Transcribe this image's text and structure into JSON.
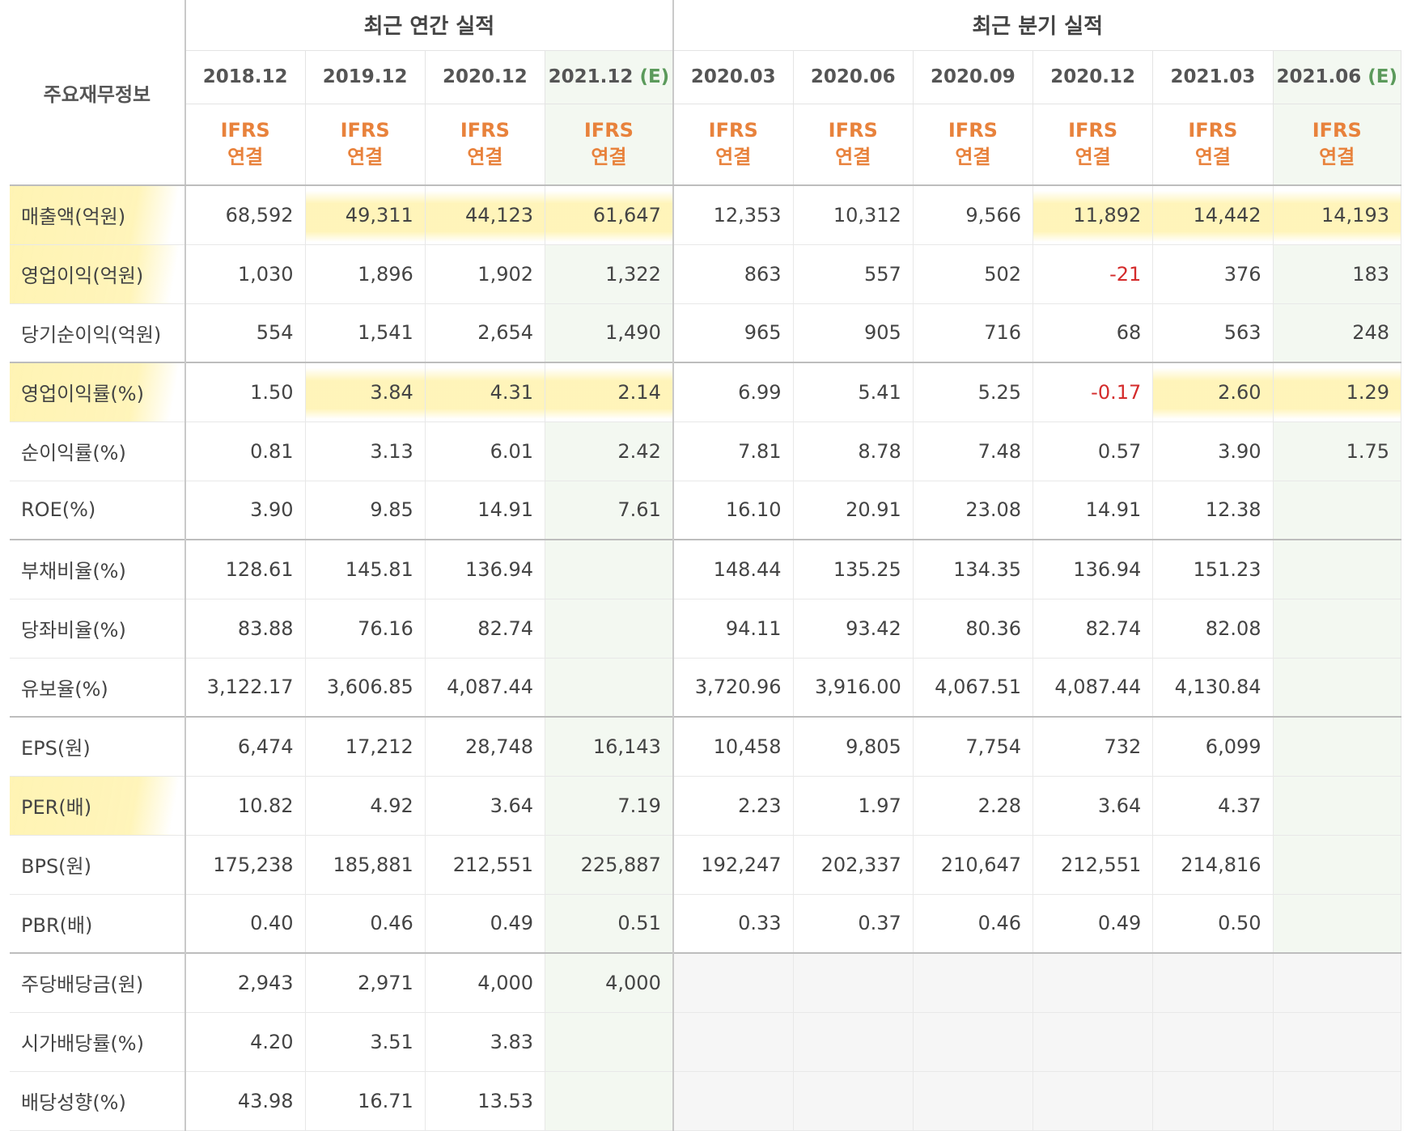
{
  "header": {
    "row_label": "주요재무정보",
    "annual_title": "최근 연간 실적",
    "quarter_title": "최근 분기 실적",
    "periods": [
      {
        "label": "2018.12",
        "est": ""
      },
      {
        "label": "2019.12",
        "est": ""
      },
      {
        "label": "2020.12",
        "est": ""
      },
      {
        "label": "2021.12",
        "est": "(E)"
      },
      {
        "label": "2020.03",
        "est": ""
      },
      {
        "label": "2020.06",
        "est": ""
      },
      {
        "label": "2020.09",
        "est": ""
      },
      {
        "label": "2020.12",
        "est": ""
      },
      {
        "label": "2021.03",
        "est": ""
      },
      {
        "label": "2021.06",
        "est": "(E)"
      }
    ],
    "ifrs_line1": "IFRS",
    "ifrs_line2": "연결"
  },
  "rows": [
    {
      "label": "매출액(억원)",
      "values": [
        "68,592",
        "49,311",
        "44,123",
        "61,647",
        "12,353",
        "10,312",
        "9,566",
        "11,892",
        "14,442",
        "14,193"
      ]
    },
    {
      "label": "영업이익(억원)",
      "values": [
        "1,030",
        "1,896",
        "1,902",
        "1,322",
        "863",
        "557",
        "502",
        "-21",
        "376",
        "183"
      ]
    },
    {
      "label": "당기순이익(억원)",
      "values": [
        "554",
        "1,541",
        "2,654",
        "1,490",
        "965",
        "905",
        "716",
        "68",
        "563",
        "248"
      ]
    },
    {
      "label": "영업이익률(%)",
      "values": [
        "1.50",
        "3.84",
        "4.31",
        "2.14",
        "6.99",
        "5.41",
        "5.25",
        "-0.17",
        "2.60",
        "1.29"
      ]
    },
    {
      "label": "순이익률(%)",
      "values": [
        "0.81",
        "3.13",
        "6.01",
        "2.42",
        "7.81",
        "8.78",
        "7.48",
        "0.57",
        "3.90",
        "1.75"
      ]
    },
    {
      "label": "ROE(%)",
      "values": [
        "3.90",
        "9.85",
        "14.91",
        "7.61",
        "16.10",
        "20.91",
        "23.08",
        "14.91",
        "12.38",
        ""
      ]
    },
    {
      "label": "부채비율(%)",
      "values": [
        "128.61",
        "145.81",
        "136.94",
        "",
        "148.44",
        "135.25",
        "134.35",
        "136.94",
        "151.23",
        ""
      ]
    },
    {
      "label": "당좌비율(%)",
      "values": [
        "83.88",
        "76.16",
        "82.74",
        "",
        "94.11",
        "93.42",
        "80.36",
        "82.74",
        "82.08",
        ""
      ]
    },
    {
      "label": "유보율(%)",
      "values": [
        "3,122.17",
        "3,606.85",
        "4,087.44",
        "",
        "3,720.96",
        "3,916.00",
        "4,067.51",
        "4,087.44",
        "4,130.84",
        ""
      ]
    },
    {
      "label": "EPS(원)",
      "values": [
        "6,474",
        "17,212",
        "28,748",
        "16,143",
        "10,458",
        "9,805",
        "7,754",
        "732",
        "6,099",
        ""
      ]
    },
    {
      "label": "PER(배)",
      "values": [
        "10.82",
        "4.92",
        "3.64",
        "7.19",
        "2.23",
        "1.97",
        "2.28",
        "3.64",
        "4.37",
        ""
      ]
    },
    {
      "label": "BPS(원)",
      "values": [
        "175,238",
        "185,881",
        "212,551",
        "225,887",
        "192,247",
        "202,337",
        "210,647",
        "212,551",
        "214,816",
        ""
      ]
    },
    {
      "label": "PBR(배)",
      "values": [
        "0.40",
        "0.46",
        "0.49",
        "0.51",
        "0.33",
        "0.37",
        "0.46",
        "0.49",
        "0.50",
        ""
      ]
    },
    {
      "label": "주당배당금(원)",
      "values": [
        "2,943",
        "2,971",
        "4,000",
        "4,000",
        "",
        "",
        "",
        "",
        "",
        ""
      ]
    },
    {
      "label": "시가배당률(%)",
      "values": [
        "4.20",
        "3.51",
        "3.83",
        "",
        "",
        "",
        "",
        "",
        "",
        ""
      ]
    },
    {
      "label": "배당성향(%)",
      "values": [
        "43.98",
        "16.71",
        "13.53",
        "",
        "",
        "",
        "",
        "",
        "",
        ""
      ]
    }
  ],
  "colors": {
    "ifrs": "#e8823c",
    "estimate": "#5b9a5b",
    "negative": "#d42b2b",
    "highlight": "#ffec82"
  }
}
